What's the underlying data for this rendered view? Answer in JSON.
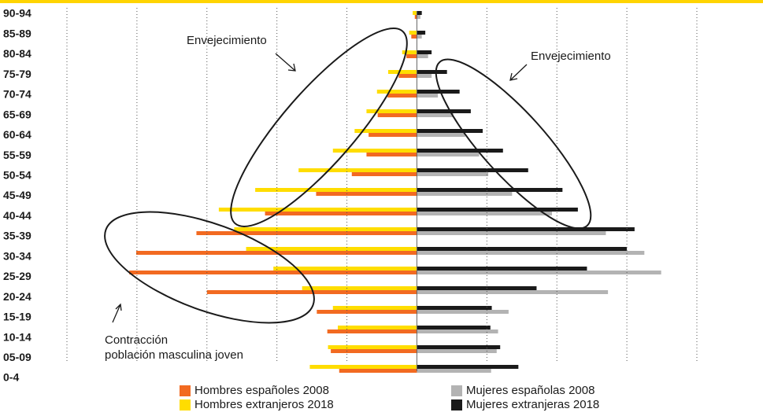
{
  "chart_data": {
    "type": "pyramid",
    "categories": [
      "90-94",
      "85-89",
      "80-84",
      "75-79",
      "70-74",
      "65-69",
      "60-64",
      "55-59",
      "50-54",
      "45-49",
      "40-44",
      "35-39",
      "30-34",
      "25-29",
      "20-24",
      "15-19",
      "10-14",
      "05-09",
      "0-4"
    ],
    "series": [
      {
        "name": "Hombres españoles 2008",
        "color": "#f26a21",
        "values": [
          -0.03,
          -0.08,
          -0.15,
          -0.26,
          -0.42,
          -0.56,
          -0.69,
          -0.72,
          -0.93,
          -1.44,
          -2.17,
          -3.15,
          -4.01,
          -4.11,
          -3.0,
          -1.43,
          -1.28,
          -1.23,
          -1.11
        ]
      },
      {
        "name": "Hombres extranjeros 2018",
        "color": "#ffdd00",
        "values": [
          -0.06,
          -0.11,
          -0.21,
          -0.41,
          -0.57,
          -0.72,
          -0.89,
          -1.2,
          -1.69,
          -2.31,
          -2.83,
          -2.61,
          -2.44,
          -2.05,
          -1.64,
          -1.2,
          -1.13,
          -1.27,
          -1.53
        ]
      },
      {
        "name": "Mujeres españolas 2008",
        "color": "#b3b3b3",
        "values": [
          0.05,
          0.07,
          0.16,
          0.21,
          0.3,
          0.52,
          0.69,
          0.89,
          1.02,
          1.36,
          1.93,
          2.7,
          3.25,
          3.49,
          2.73,
          1.31,
          1.16,
          1.14,
          1.06
        ]
      },
      {
        "name": "Mujeres extranjeras 2018",
        "color": "#1a1a1a",
        "values": [
          0.07,
          0.12,
          0.21,
          0.43,
          0.61,
          0.77,
          0.94,
          1.23,
          1.59,
          2.08,
          2.3,
          3.11,
          3.0,
          2.43,
          1.71,
          1.07,
          1.05,
          1.19,
          1.45
        ]
      }
    ],
    "xlim": [
      -5,
      4
    ],
    "xticks": [
      -5,
      -4,
      -3,
      -2,
      -1,
      0,
      1,
      2,
      3,
      4
    ],
    "grid": true,
    "annotations": [
      "Envejecimiento",
      "Envejecimiento",
      "Contracción",
      "población masculina joven"
    ]
  }
}
